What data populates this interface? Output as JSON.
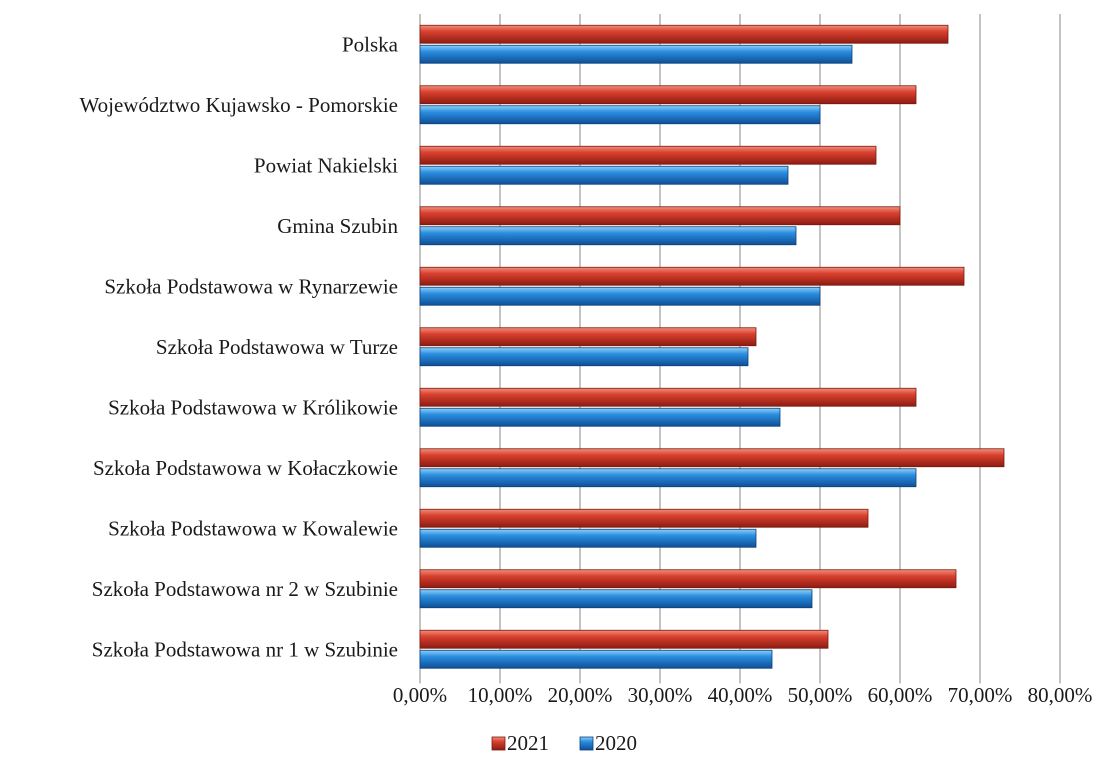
{
  "chart_data": {
    "type": "bar",
    "orientation": "horizontal",
    "title": "",
    "xlabel": "",
    "ylabel": "",
    "categories": [
      "Polska",
      "Województwo Kujawsko - Pomorskie",
      "Powiat Nakielski",
      "Gmina Szubin",
      "Szkoła Podstawowa w Rynarzewie",
      "Szkoła Podstawowa w Turze",
      "Szkoła Podstawowa w Królikowie",
      "Szkoła Podstawowa w Kołaczkowie",
      "Szkoła Podstawowa w Kowalewie",
      "Szkoła Podstawowa nr 2 w Szubinie",
      "Szkoła Podstawowa nr 1 w Szubinie"
    ],
    "series": [
      {
        "name": "2021",
        "color": "#c0392b",
        "values": [
          66,
          62,
          57,
          60,
          68,
          42,
          62,
          73,
          56,
          67,
          51
        ]
      },
      {
        "name": "2020",
        "color": "#1f7fd0",
        "values": [
          54,
          50,
          46,
          47,
          50,
          41,
          45,
          62,
          42,
          49,
          44
        ]
      }
    ],
    "xlim": [
      0,
      80
    ],
    "x_ticks": [
      "0,00%",
      "10,00%",
      "20,00%",
      "30,00%",
      "40,00%",
      "50,00%",
      "60,00%",
      "70,00%",
      "80,00%"
    ],
    "grid": true,
    "legend_position": "bottom"
  }
}
